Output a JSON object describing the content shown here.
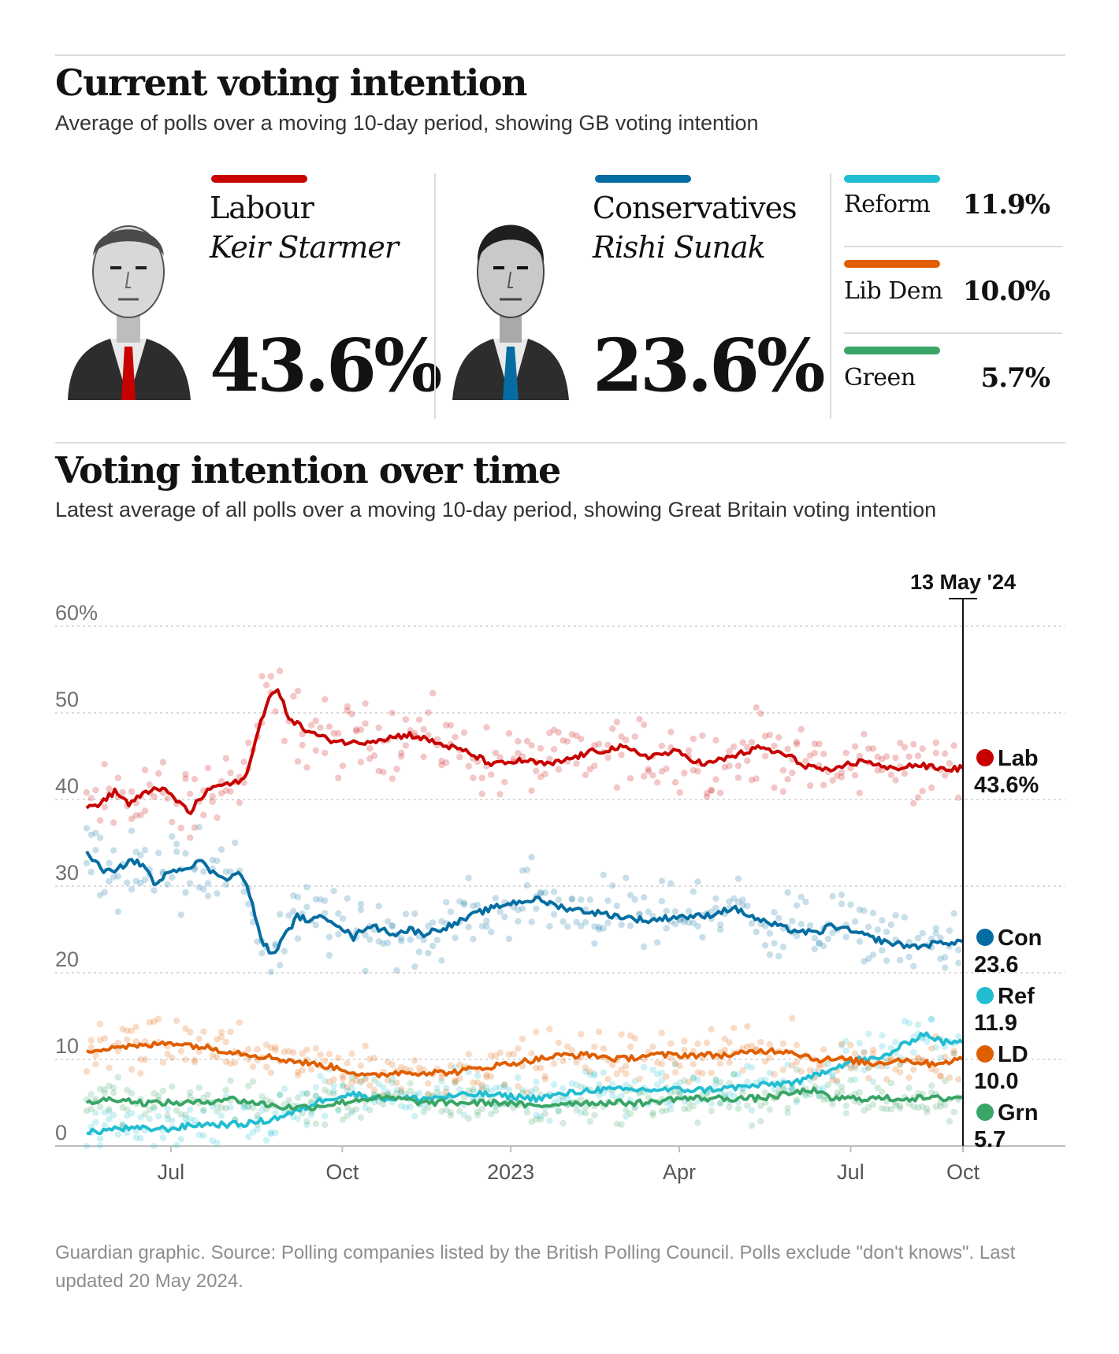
{
  "header": {
    "title": "Current voting intention",
    "subtitle": "Average of polls over a moving 10-day period, showing GB voting intention"
  },
  "cards": {
    "labour": {
      "party": "Labour",
      "leader": "Keir Starmer",
      "value": "43.6%",
      "color": "#c70000"
    },
    "conservatives": {
      "party": "Conservatives",
      "leader": "Rishi Sunak",
      "value": "23.6%",
      "color": "#056da1"
    },
    "minor": [
      {
        "party": "Reform",
        "value": "11.9%",
        "color": "#22bdd1"
      },
      {
        "party": "Lib Dem",
        "value": "10.0%",
        "color": "#e05e00"
      },
      {
        "party": "Green",
        "value": "5.7%",
        "color": "#39a566"
      }
    ]
  },
  "section2": {
    "title": "Voting intention over time",
    "subtitle": "Latest average of all polls over a moving 10-day period, showing Great Britain voting intention"
  },
  "chart_data": {
    "type": "line",
    "title": "Voting intention over time",
    "xlabel": "",
    "ylabel": "",
    "ylim": [
      0,
      60
    ],
    "yticks": [
      "60%",
      "50",
      "40",
      "30",
      "20",
      "10",
      "0"
    ],
    "xticks": [
      "Jul",
      "Oct",
      "2023",
      "Apr",
      "Jul",
      "Oct"
    ],
    "marker_label": "13 May '24",
    "series": [
      {
        "name": "Lab",
        "color": "#c70000",
        "end_label": "43.6%",
        "latest": 43.6,
        "points": [
          [
            0,
            39
          ],
          [
            4,
            39.5
          ],
          [
            7,
            40
          ],
          [
            10,
            41
          ],
          [
            15,
            39.5
          ],
          [
            20,
            40.5
          ],
          [
            25,
            41.5
          ],
          [
            30,
            40.5
          ],
          [
            35,
            39
          ],
          [
            37,
            38.5
          ],
          [
            40,
            40
          ],
          [
            45,
            41.5
          ],
          [
            55,
            42
          ],
          [
            58,
            44
          ],
          [
            62,
            49
          ],
          [
            65,
            52
          ],
          [
            68,
            52.5
          ],
          [
            72,
            49.5
          ],
          [
            78,
            48
          ],
          [
            85,
            47
          ],
          [
            95,
            46.5
          ],
          [
            105,
            47
          ],
          [
            115,
            47.5
          ],
          [
            125,
            46.5
          ],
          [
            135,
            45.5
          ],
          [
            145,
            44
          ],
          [
            155,
            44.5
          ],
          [
            165,
            44
          ],
          [
            170,
            44.5
          ],
          [
            180,
            45.5
          ],
          [
            190,
            46
          ],
          [
            200,
            45
          ],
          [
            210,
            45.5
          ],
          [
            220,
            44
          ],
          [
            230,
            45
          ],
          [
            240,
            46
          ],
          [
            250,
            45
          ],
          [
            255,
            44
          ],
          [
            262,
            43.5
          ],
          [
            265,
            43
          ],
          [
            270,
            44
          ],
          [
            278,
            44.5
          ],
          [
            285,
            43.5
          ],
          [
            295,
            44
          ],
          [
            305,
            43.5
          ],
          [
            312,
            43.6
          ]
        ]
      },
      {
        "name": "Con",
        "color": "#056da1",
        "end_label": "23.6",
        "latest": 23.6,
        "points": [
          [
            0,
            34
          ],
          [
            5,
            32
          ],
          [
            10,
            31.5
          ],
          [
            15,
            33
          ],
          [
            20,
            32.5
          ],
          [
            25,
            30
          ],
          [
            30,
            32
          ],
          [
            35,
            32
          ],
          [
            40,
            33
          ],
          [
            45,
            31.5
          ],
          [
            50,
            31
          ],
          [
            55,
            31.5
          ],
          [
            58,
            29
          ],
          [
            62,
            24
          ],
          [
            66,
            22
          ],
          [
            70,
            24
          ],
          [
            75,
            26.5
          ],
          [
            80,
            26
          ],
          [
            85,
            26.5
          ],
          [
            90,
            25.5
          ],
          [
            95,
            24
          ],
          [
            100,
            25.5
          ],
          [
            105,
            25
          ],
          [
            110,
            24.5
          ],
          [
            115,
            25
          ],
          [
            120,
            24.5
          ],
          [
            130,
            25.5
          ],
          [
            140,
            27
          ],
          [
            150,
            28
          ],
          [
            160,
            28.5
          ],
          [
            170,
            27.5
          ],
          [
            180,
            27
          ],
          [
            190,
            26.5
          ],
          [
            200,
            26
          ],
          [
            210,
            26.5
          ],
          [
            220,
            26.5
          ],
          [
            230,
            27.5
          ],
          [
            240,
            26
          ],
          [
            250,
            25
          ],
          [
            260,
            24.5
          ],
          [
            265,
            25.5
          ],
          [
            275,
            24.5
          ],
          [
            285,
            23.5
          ],
          [
            295,
            23
          ],
          [
            305,
            23.5
          ],
          [
            312,
            23.6
          ]
        ]
      },
      {
        "name": "Ref",
        "color": "#22bdd1",
        "end_label": "11.9",
        "latest": 11.9,
        "points": [
          [
            0,
            1.5
          ],
          [
            10,
            2
          ],
          [
            20,
            2
          ],
          [
            30,
            2
          ],
          [
            40,
            2.5
          ],
          [
            55,
            2.5
          ],
          [
            65,
            3
          ],
          [
            75,
            4
          ],
          [
            85,
            5.5
          ],
          [
            95,
            6
          ],
          [
            105,
            5.5
          ],
          [
            120,
            5.5
          ],
          [
            140,
            6
          ],
          [
            160,
            5.5
          ],
          [
            180,
            6.5
          ],
          [
            200,
            6.5
          ],
          [
            220,
            6.5
          ],
          [
            240,
            7
          ],
          [
            255,
            7.5
          ],
          [
            265,
            9
          ],
          [
            275,
            10
          ],
          [
            282,
            10
          ],
          [
            290,
            11.5
          ],
          [
            298,
            13
          ],
          [
            305,
            12
          ],
          [
            312,
            11.9
          ]
        ]
      },
      {
        "name": "LD",
        "color": "#e05e00",
        "end_label": "10.0",
        "latest": 10.0,
        "points": [
          [
            0,
            11
          ],
          [
            10,
            11.5
          ],
          [
            20,
            11.5
          ],
          [
            30,
            12
          ],
          [
            40,
            11.5
          ],
          [
            50,
            11
          ],
          [
            60,
            10.5
          ],
          [
            70,
            10
          ],
          [
            80,
            9.5
          ],
          [
            90,
            9
          ],
          [
            100,
            8
          ],
          [
            110,
            8.5
          ],
          [
            120,
            8.5
          ],
          [
            130,
            8.5
          ],
          [
            140,
            9
          ],
          [
            150,
            9.5
          ],
          [
            160,
            10
          ],
          [
            170,
            10.5
          ],
          [
            180,
            10.5
          ],
          [
            190,
            10
          ],
          [
            200,
            10.5
          ],
          [
            210,
            10.5
          ],
          [
            220,
            10.5
          ],
          [
            230,
            10.5
          ],
          [
            240,
            11
          ],
          [
            250,
            11
          ],
          [
            260,
            10
          ],
          [
            270,
            10
          ],
          [
            280,
            9.5
          ],
          [
            290,
            10
          ],
          [
            300,
            9.5
          ],
          [
            312,
            10.0
          ]
        ]
      },
      {
        "name": "Grn",
        "color": "#39a566",
        "end_label": "5.7",
        "latest": 5.7,
        "points": [
          [
            0,
            5
          ],
          [
            10,
            5.5
          ],
          [
            20,
            5
          ],
          [
            30,
            5
          ],
          [
            40,
            5
          ],
          [
            50,
            5.5
          ],
          [
            60,
            5
          ],
          [
            70,
            4.5
          ],
          [
            80,
            4.5
          ],
          [
            90,
            5
          ],
          [
            100,
            5.5
          ],
          [
            110,
            5.5
          ],
          [
            120,
            5
          ],
          [
            130,
            5
          ],
          [
            140,
            5
          ],
          [
            150,
            5
          ],
          [
            160,
            4.5
          ],
          [
            170,
            5
          ],
          [
            180,
            5
          ],
          [
            190,
            5
          ],
          [
            200,
            5
          ],
          [
            210,
            5.5
          ],
          [
            220,
            5.5
          ],
          [
            230,
            5.5
          ],
          [
            240,
            5.5
          ],
          [
            250,
            6
          ],
          [
            258,
            6.5
          ],
          [
            265,
            5.5
          ],
          [
            275,
            5.5
          ],
          [
            285,
            5.5
          ],
          [
            295,
            5.5
          ],
          [
            305,
            5.5
          ],
          [
            312,
            5.7
          ]
        ]
      }
    ]
  },
  "footer": {
    "source": "Guardian graphic. Source: Polling companies listed by the British Polling Council. Polls exclude \"don't knows\". Last updated 20 May 2024."
  }
}
